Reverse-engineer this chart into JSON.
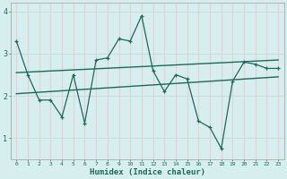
{
  "xlabel": "Humidex (Indice chaleur)",
  "bg_color": "#d6eeee",
  "line_color": "#1a6b5a",
  "vgrid_color": "#e8d0d0",
  "hgrid_color": "#c8dede",
  "x_data": [
    0,
    1,
    2,
    3,
    4,
    5,
    6,
    7,
    8,
    9,
    10,
    11,
    12,
    13,
    14,
    15,
    16,
    17,
    18,
    19,
    20,
    21,
    22,
    23
  ],
  "y_data": [
    3.3,
    2.5,
    1.9,
    1.9,
    1.5,
    2.5,
    1.35,
    2.85,
    2.9,
    3.35,
    3.3,
    3.9,
    2.6,
    2.1,
    2.5,
    2.4,
    1.4,
    1.25,
    0.75,
    2.35,
    2.8,
    2.75,
    2.65,
    2.65
  ],
  "trend1_x": [
    0,
    23
  ],
  "trend1_y": [
    2.55,
    2.85
  ],
  "trend2_x": [
    0,
    23
  ],
  "trend2_y": [
    2.05,
    2.45
  ],
  "ylim": [
    0.5,
    4.2
  ],
  "xlim": [
    -0.5,
    23.5
  ],
  "yticks": [
    1,
    2,
    3,
    4
  ],
  "xticks": [
    0,
    1,
    2,
    3,
    4,
    5,
    6,
    7,
    8,
    9,
    10,
    11,
    12,
    13,
    14,
    15,
    16,
    17,
    18,
    19,
    20,
    21,
    22,
    23
  ]
}
